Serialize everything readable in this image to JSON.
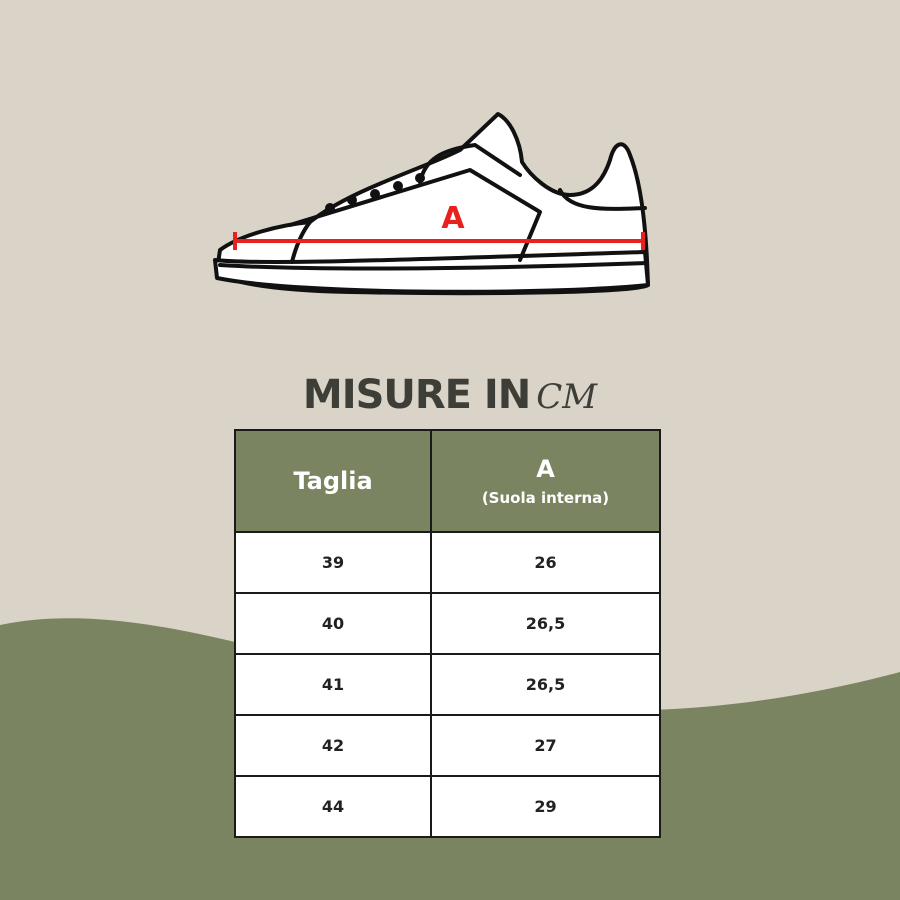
{
  "colors": {
    "background": "#dad4c8",
    "accent_green": "#7a8460",
    "title_text": "#3e3e39",
    "measure_line": "#e8211e"
  },
  "illustration": {
    "icon": "sneaker-outline-icon",
    "measure_label": "A"
  },
  "title": {
    "main": "MISURE IN",
    "unit": "CM"
  },
  "table": {
    "headers": [
      {
        "label": "Taglia"
      },
      {
        "label": "A",
        "sublabel": "(Suola interna)"
      }
    ],
    "rows": [
      [
        "39",
        "26"
      ],
      [
        "40",
        "26,5"
      ],
      [
        "41",
        "26,5"
      ],
      [
        "42",
        "27"
      ],
      [
        "44",
        "29"
      ]
    ]
  }
}
